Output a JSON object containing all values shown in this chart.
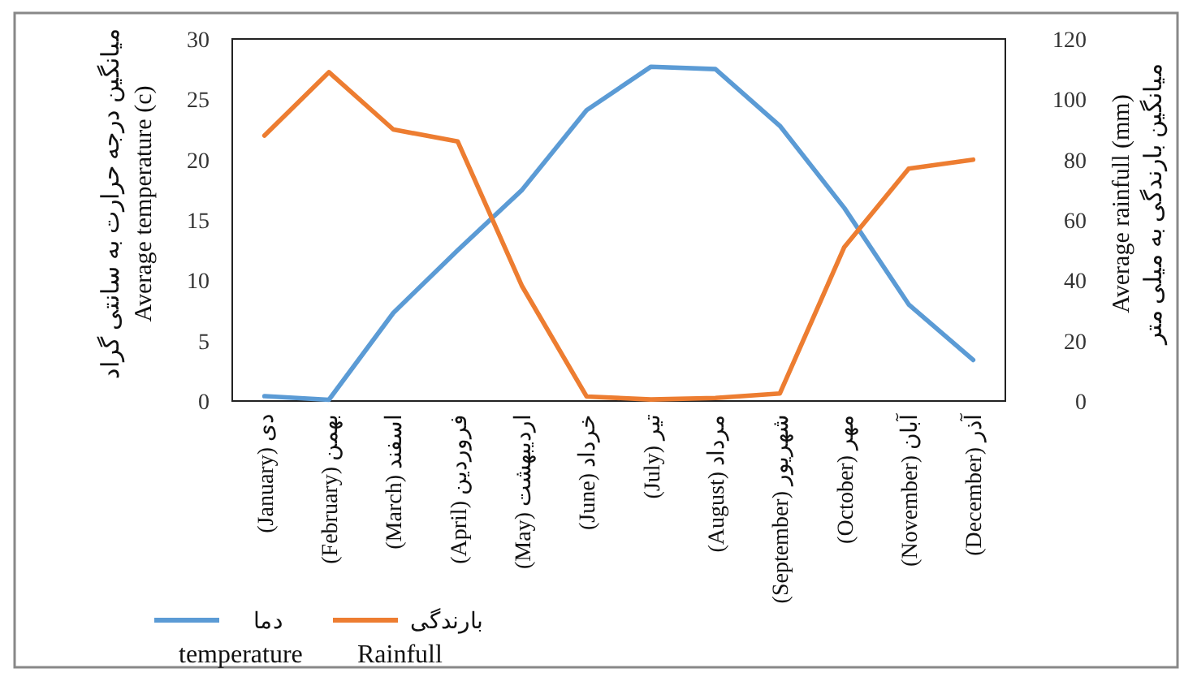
{
  "chart_data": {
    "type": "line",
    "categories": [
      "دی (January)",
      "بهمن (February)",
      "اسفند (March)",
      "فروردین (April)",
      "اردیبهشت (May)",
      "خرداد (June)",
      "تیر (July)",
      "مرداد (August)",
      "شهریور (September)",
      "مهر (October)",
      "آبان (November)",
      "آذر (December)"
    ],
    "series": [
      {
        "name": "دما\ntemperature",
        "color": "#5b9bd5",
        "values": [
          0.4,
          0.1,
          7.3,
          12.5,
          17.5,
          24.1,
          27.7,
          27.5,
          22.8,
          16,
          8,
          3.4
        ]
      },
      {
        "name": "بارندگی\nRainfull",
        "color": "#ed7d31",
        "axis": "y2",
        "values": [
          88,
          109,
          90,
          86,
          38,
          1.5,
          0.5,
          1,
          2.5,
          51,
          77,
          80
        ]
      }
    ],
    "ylabel": "میانگین درجه حرارت به سانتی گراد\nAverage temperature (c)",
    "y2label": "Average rainfull (mm)\nمیانگین بارندگی به میلی متر",
    "ylim": [
      0,
      30
    ],
    "yticks": [
      0,
      5,
      10,
      15,
      20,
      25,
      30
    ],
    "y2lim": [
      0,
      120
    ],
    "y2ticks": [
      0,
      20,
      40,
      60,
      80,
      100,
      120
    ],
    "grid": false,
    "marker": "none",
    "line_style": "solid",
    "legend": "bottom left"
  }
}
